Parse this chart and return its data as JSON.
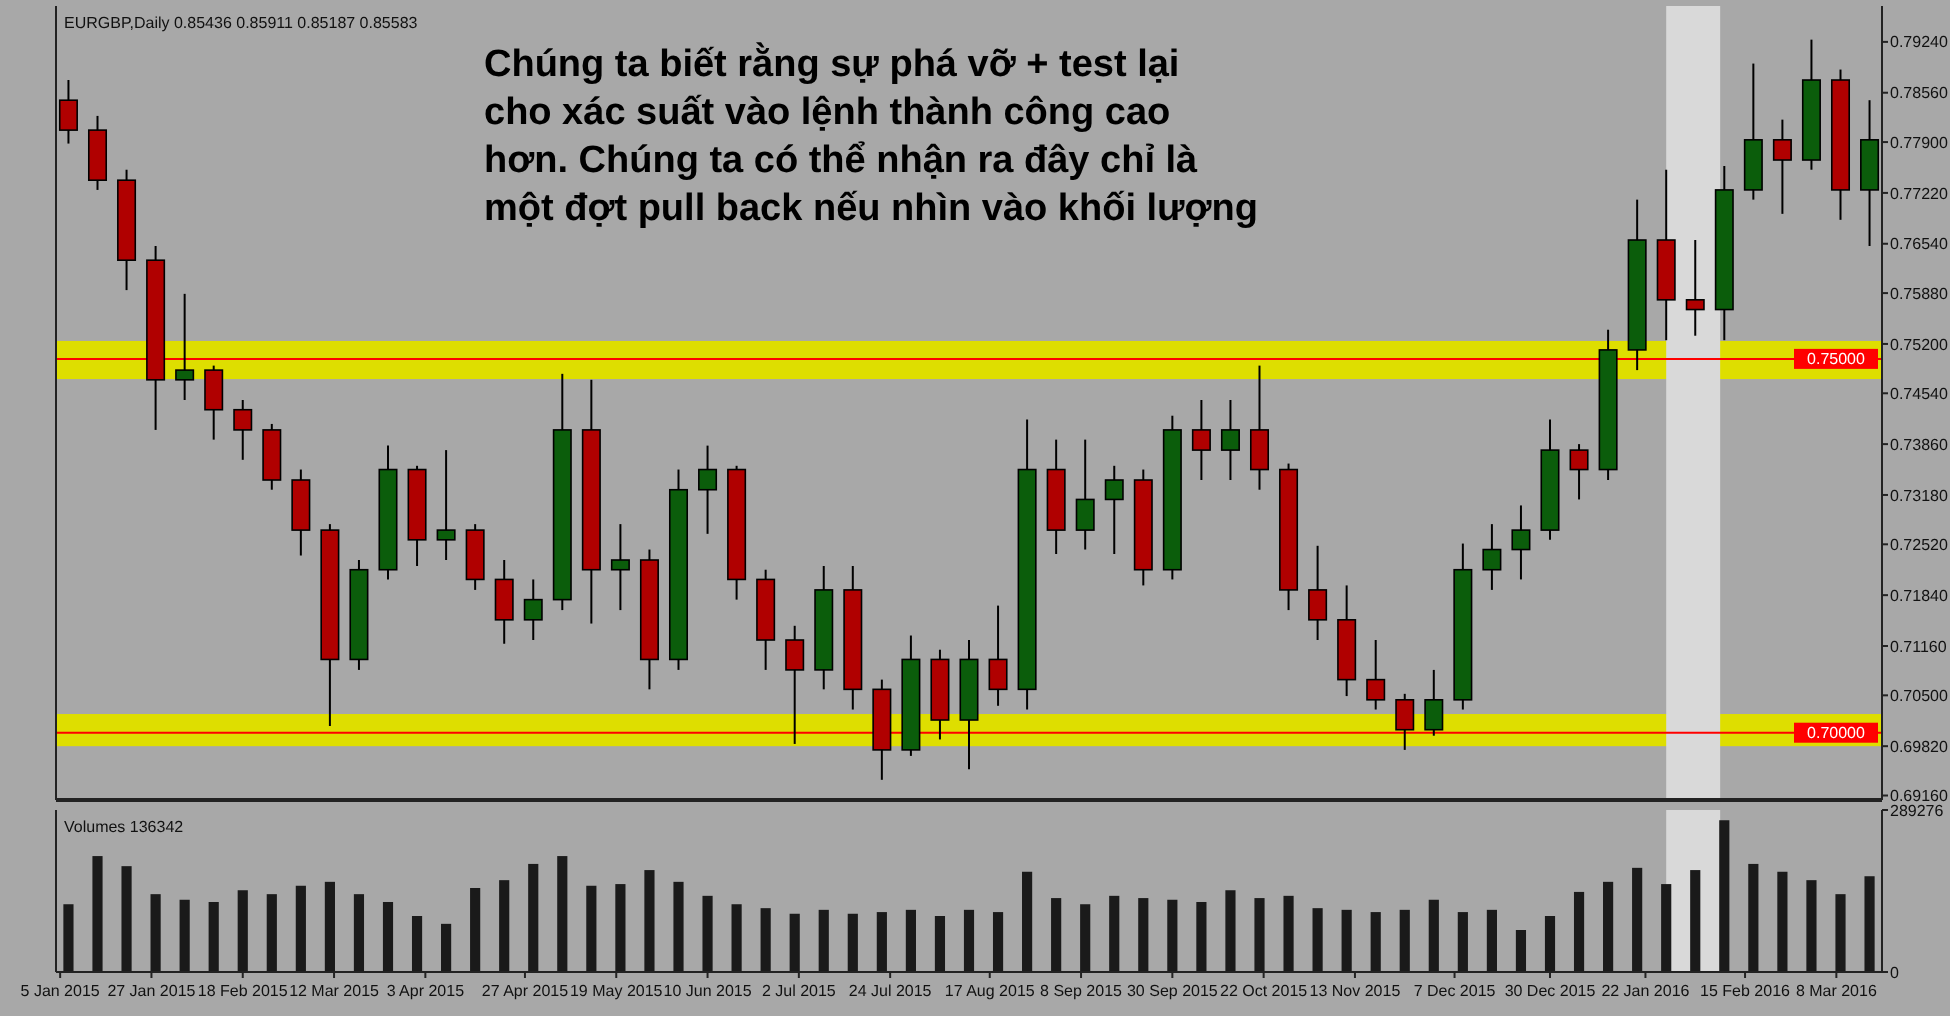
{
  "chart_data": [
    {
      "type": "candlestick",
      "title": "EURGBP,Daily 0.85436 0.85911 0.85187 0.85583",
      "annotations": [
        "Chúng ta biết rằng sự phá vỡ + test lại",
        "cho xác suất vào lệnh thành công cao",
        "hơn. Chúng ta có thể nhận ra đây chỉ là",
        "một đợt pull back nếu nhìn vào khối lượng"
      ],
      "x": [
        "2015-01-07",
        "2015-01-14",
        "2015-01-21",
        "2015-01-28",
        "2015-02-04",
        "2015-02-11",
        "2015-02-18",
        "2015-02-25",
        "2015-03-04",
        "2015-03-11",
        "2015-03-18",
        "2015-03-25",
        "2015-04-01",
        "2015-04-08",
        "2015-04-15",
        "2015-04-22",
        "2015-04-29",
        "2015-05-06",
        "2015-05-13",
        "2015-05-20",
        "2015-05-27",
        "2015-06-03",
        "2015-06-10",
        "2015-06-17",
        "2015-06-24",
        "2015-07-01",
        "2015-07-08",
        "2015-07-15",
        "2015-07-22",
        "2015-07-29",
        "2015-08-05",
        "2015-08-12",
        "2015-08-19",
        "2015-08-26",
        "2015-09-02",
        "2015-09-09",
        "2015-09-16",
        "2015-09-23",
        "2015-09-30",
        "2015-10-07",
        "2015-10-14",
        "2015-10-21",
        "2015-10-28",
        "2015-11-04",
        "2015-11-11",
        "2015-11-18",
        "2015-11-25",
        "2015-12-02",
        "2015-12-09",
        "2015-12-16",
        "2015-12-23",
        "2015-12-30",
        "2016-01-06",
        "2016-01-13",
        "2016-01-20",
        "2016-01-27",
        "2016-02-03",
        "2016-02-10",
        "2016-02-17",
        "2016-02-24",
        "2016-03-02",
        "2016-03-09",
        "2016-03-16"
      ],
      "ohlc": [
        [
          0.7846,
          0.7873,
          0.7788,
          0.7806
        ],
        [
          0.7806,
          0.7825,
          0.7726,
          0.7739
        ],
        [
          0.7739,
          0.7753,
          0.7592,
          0.7632
        ],
        [
          0.7632,
          0.7651,
          0.7405,
          0.7472
        ],
        [
          0.7472,
          0.7587,
          0.7445,
          0.7485
        ],
        [
          0.7485,
          0.7491,
          0.7392,
          0.7432
        ],
        [
          0.7432,
          0.7445,
          0.7365,
          0.7405
        ],
        [
          0.7405,
          0.7413,
          0.7325,
          0.7338
        ],
        [
          0.7338,
          0.7352,
          0.7237,
          0.7271
        ],
        [
          0.7271,
          0.7279,
          0.7009,
          0.7098
        ],
        [
          0.7098,
          0.7231,
          0.7084,
          0.7218
        ],
        [
          0.7218,
          0.7384,
          0.7205,
          0.7352
        ],
        [
          0.7352,
          0.7357,
          0.7223,
          0.7258
        ],
        [
          0.7258,
          0.7378,
          0.7231,
          0.7271
        ],
        [
          0.7271,
          0.7279,
          0.7191,
          0.7205
        ],
        [
          0.7205,
          0.7231,
          0.7119,
          0.7151
        ],
        [
          0.7151,
          0.7205,
          0.7124,
          0.7178
        ],
        [
          0.7178,
          0.748,
          0.7164,
          0.7405
        ],
        [
          0.7405,
          0.7472,
          0.7146,
          0.7218
        ],
        [
          0.7218,
          0.7279,
          0.7164,
          0.7231
        ],
        [
          0.7231,
          0.7245,
          0.7058,
          0.7098
        ],
        [
          0.7098,
          0.7352,
          0.7084,
          0.7325
        ],
        [
          0.7325,
          0.7384,
          0.7266,
          0.7352
        ],
        [
          0.7352,
          0.7357,
          0.7178,
          0.7205
        ],
        [
          0.7205,
          0.7218,
          0.7084,
          0.7124
        ],
        [
          0.7124,
          0.7143,
          0.6985,
          0.7084
        ],
        [
          0.7084,
          0.7223,
          0.7058,
          0.7191
        ],
        [
          0.7191,
          0.7223,
          0.7031,
          0.7058
        ],
        [
          0.7058,
          0.7071,
          0.6937,
          0.6977
        ],
        [
          0.6977,
          0.713,
          0.6969,
          0.7098
        ],
        [
          0.7098,
          0.7111,
          0.6991,
          0.7017
        ],
        [
          0.7017,
          0.7124,
          0.6951,
          0.7098
        ],
        [
          0.7098,
          0.717,
          0.7036,
          0.7058
        ],
        [
          0.7058,
          0.7419,
          0.7031,
          0.7352
        ],
        [
          0.7352,
          0.7392,
          0.7239,
          0.7271
        ],
        [
          0.7271,
          0.7392,
          0.7245,
          0.7312
        ],
        [
          0.7312,
          0.7357,
          0.7239,
          0.7338
        ],
        [
          0.7338,
          0.7352,
          0.7197,
          0.7218
        ],
        [
          0.7218,
          0.7424,
          0.7205,
          0.7405
        ],
        [
          0.7405,
          0.7445,
          0.7338,
          0.7378
        ],
        [
          0.7378,
          0.7445,
          0.7338,
          0.7405
        ],
        [
          0.7405,
          0.7491,
          0.7325,
          0.7352
        ],
        [
          0.7352,
          0.736,
          0.7164,
          0.7191
        ],
        [
          0.7191,
          0.725,
          0.7124,
          0.7151
        ],
        [
          0.7151,
          0.7197,
          0.7049,
          0.7071
        ],
        [
          0.7071,
          0.7124,
          0.7031,
          0.7044
        ],
        [
          0.7044,
          0.7052,
          0.6977,
          0.7004
        ],
        [
          0.7004,
          0.7084,
          0.6996,
          0.7044
        ],
        [
          0.7044,
          0.7253,
          0.7031,
          0.7218
        ],
        [
          0.7218,
          0.7279,
          0.7191,
          0.7245
        ],
        [
          0.7245,
          0.7304,
          0.7205,
          0.7271
        ],
        [
          0.7271,
          0.7419,
          0.7258,
          0.7378
        ],
        [
          0.7378,
          0.7386,
          0.7312,
          0.7352
        ],
        [
          0.7352,
          0.7539,
          0.7338,
          0.7512
        ],
        [
          0.7512,
          0.7713,
          0.7485,
          0.7659
        ],
        [
          0.7659,
          0.7753,
          0.7525,
          0.7579
        ],
        [
          0.7579,
          0.7659,
          0.7531,
          0.7566
        ],
        [
          0.7566,
          0.7758,
          0.7525,
          0.7726
        ],
        [
          0.7726,
          0.7895,
          0.7713,
          0.7793
        ],
        [
          0.7793,
          0.782,
          0.7694,
          0.7766
        ],
        [
          0.7766,
          0.7927,
          0.7753,
          0.7873
        ],
        [
          0.7873,
          0.7887,
          0.7686,
          0.7726
        ],
        [
          0.7726,
          0.7846,
          0.7651,
          0.7793
        ]
      ],
      "xlim": [
        "2015-01-04",
        "2016-03-19"
      ],
      "ylim": [
        0.691,
        0.7972
      ],
      "yticks": [
        {
          "value": 0.7924,
          "label": "0.79240"
        },
        {
          "value": 0.7856,
          "label": "0.78560"
        },
        {
          "value": 0.779,
          "label": "0.77900"
        },
        {
          "value": 0.7722,
          "label": "0.77220"
        },
        {
          "value": 0.7654,
          "label": "0.76540"
        },
        {
          "value": 0.7588,
          "label": "0.75880"
        },
        {
          "value": 0.752,
          "label": "0.75200"
        },
        {
          "value": 0.7454,
          "label": "0.74540"
        },
        {
          "value": 0.7386,
          "label": "0.73860"
        },
        {
          "value": 0.7318,
          "label": "0.73180"
        },
        {
          "value": 0.7252,
          "label": "0.72520"
        },
        {
          "value": 0.7184,
          "label": "0.71840"
        },
        {
          "value": 0.7116,
          "label": "0.71160"
        },
        {
          "value": 0.705,
          "label": "0.70500"
        },
        {
          "value": 0.6982,
          "label": "0.69820"
        },
        {
          "value": 0.6916,
          "label": "0.69160"
        }
      ],
      "ref_lines": [
        {
          "axis": "y",
          "value": 0.75,
          "label": "0.75000",
          "color": "#ff0000"
        },
        {
          "axis": "y",
          "value": 0.7,
          "label": "0.70000",
          "color": "#ff0000"
        }
      ],
      "bands": [
        {
          "axis": "y",
          "from": 0.7473,
          "to": 0.7524,
          "color": "#dede00"
        },
        {
          "axis": "y",
          "from": 0.6982,
          "to": 0.7025,
          "color": "#dede00"
        },
        {
          "axis": "x",
          "from": "2016-01-27",
          "to": "2016-02-09",
          "color": "#d9d9d9"
        }
      ],
      "tick_labels": "y"
    },
    {
      "type": "bar",
      "title": "Volumes 136342",
      "color": "#1a1a1a",
      "x": [
        "2015-01-07",
        "2015-01-14",
        "2015-01-21",
        "2015-01-28",
        "2015-02-04",
        "2015-02-11",
        "2015-02-18",
        "2015-02-25",
        "2015-03-04",
        "2015-03-11",
        "2015-03-18",
        "2015-03-25",
        "2015-04-01",
        "2015-04-08",
        "2015-04-15",
        "2015-04-22",
        "2015-04-29",
        "2015-05-06",
        "2015-05-13",
        "2015-05-20",
        "2015-05-27",
        "2015-06-03",
        "2015-06-10",
        "2015-06-17",
        "2015-06-24",
        "2015-07-01",
        "2015-07-08",
        "2015-07-15",
        "2015-07-22",
        "2015-07-29",
        "2015-08-05",
        "2015-08-12",
        "2015-08-19",
        "2015-08-26",
        "2015-09-02",
        "2015-09-09",
        "2015-09-16",
        "2015-09-23",
        "2015-09-30",
        "2015-10-07",
        "2015-10-14",
        "2015-10-21",
        "2015-10-28",
        "2015-11-04",
        "2015-11-11",
        "2015-11-18",
        "2015-11-25",
        "2015-12-02",
        "2015-12-09",
        "2015-12-16",
        "2015-12-23",
        "2015-12-30",
        "2016-01-06",
        "2016-01-13",
        "2016-01-20",
        "2016-01-27",
        "2016-02-03",
        "2016-02-10",
        "2016-02-17",
        "2016-02-24",
        "2016-03-02",
        "2016-03-09",
        "2016-03-16"
      ],
      "values": [
        121000,
        207000,
        189000,
        139000,
        129000,
        125000,
        146000,
        139000,
        154000,
        161000,
        139000,
        125000,
        100000,
        86000,
        150000,
        164000,
        193000,
        207000,
        154000,
        157000,
        182000,
        161000,
        136000,
        121000,
        114000,
        104000,
        111000,
        104000,
        107000,
        111000,
        100000,
        111000,
        107000,
        179000,
        132000,
        121000,
        136000,
        132000,
        129000,
        125000,
        146000,
        132000,
        136000,
        114000,
        111000,
        107000,
        111000,
        129000,
        107000,
        111000,
        75000,
        100000,
        143000,
        161000,
        186000,
        157000,
        182000,
        271000,
        193000,
        179000,
        164000,
        139000,
        171000
      ],
      "xlim": [
        "2015-01-04",
        "2016-03-19"
      ],
      "ylim": [
        0,
        289276
      ],
      "yticks": [
        289276,
        0
      ],
      "xticks": [
        {
          "value": "2015-01-05",
          "label": "5 Jan 2015"
        },
        {
          "value": "2015-01-27",
          "label": "27 Jan 2015"
        },
        {
          "value": "2015-02-18",
          "label": "18 Feb 2015"
        },
        {
          "value": "2015-03-12",
          "label": "12 Mar 2015"
        },
        {
          "value": "2015-04-03",
          "label": "3 Apr 2015"
        },
        {
          "value": "2015-04-27",
          "label": "27 Apr 2015"
        },
        {
          "value": "2015-05-19",
          "label": "19 May 2015"
        },
        {
          "value": "2015-06-10",
          "label": "10 Jun 2015"
        },
        {
          "value": "2015-07-02",
          "label": "2 Jul 2015"
        },
        {
          "value": "2015-07-24",
          "label": "24 Jul 2015"
        },
        {
          "value": "2015-08-17",
          "label": "17 Aug 2015"
        },
        {
          "value": "2015-09-08",
          "label": "8 Sep 2015"
        },
        {
          "value": "2015-09-30",
          "label": "30 Sep 2015"
        },
        {
          "value": "2015-10-22",
          "label": "22 Oct 2015"
        },
        {
          "value": "2015-11-13",
          "label": "13 Nov 2015"
        },
        {
          "value": "2015-12-07",
          "label": "7 Dec 2015"
        },
        {
          "value": "2015-12-30",
          "label": "30 Dec 2015"
        },
        {
          "value": "2016-01-22",
          "label": "22 Jan 2016"
        },
        {
          "value": "2016-02-15",
          "label": "15 Feb 2016"
        },
        {
          "value": "2016-03-08",
          "label": "8 Mar 2016"
        }
      ],
      "bands": [
        {
          "axis": "x",
          "from": "2016-01-27",
          "to": "2016-02-09",
          "color": "#d9d9d9"
        }
      ]
    }
  ]
}
